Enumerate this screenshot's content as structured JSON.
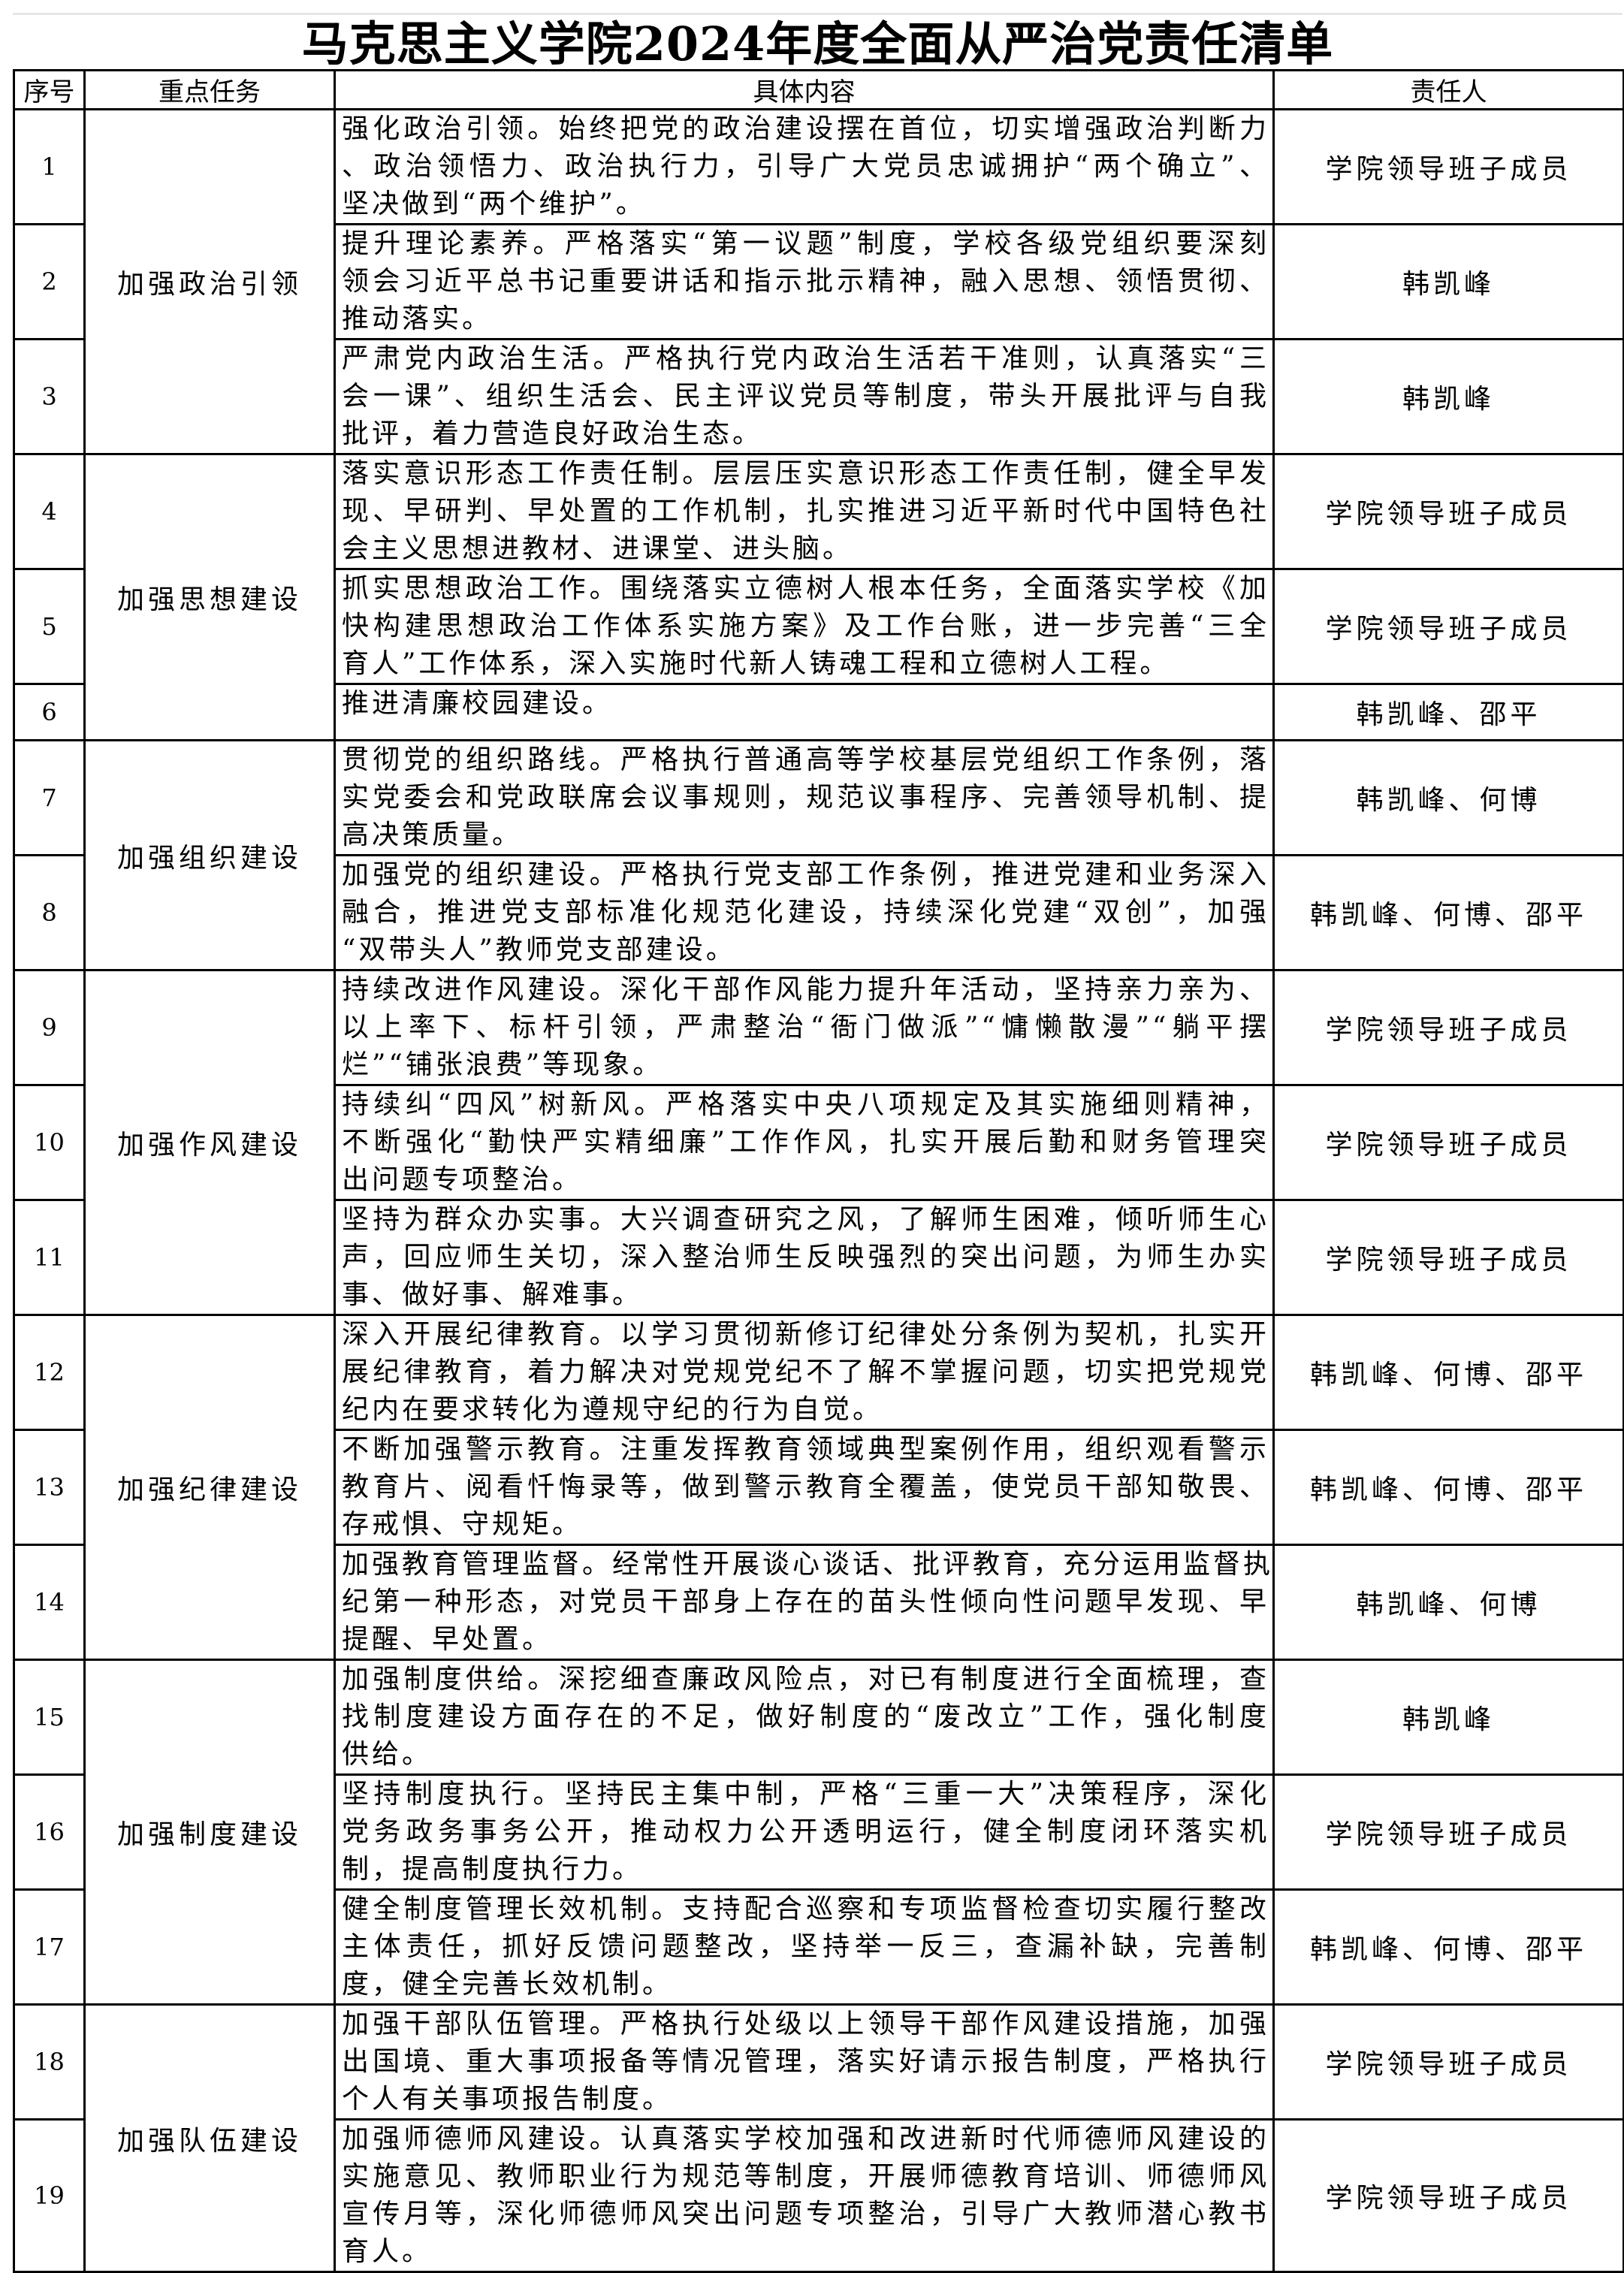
{
  "title": "马克思主义学院2024年度全面从严治党责任清单",
  "headers": [
    "序号",
    "重点任务",
    "具体内容",
    "责任人"
  ],
  "groups": [
    {
      "label": "加强政治引领",
      "rows": [
        {
          "no": "1",
          "lines": [
            "强化政治引领。始终把党的政治建设摆在首位，切实增强政治判断力",
            "、政治领悟力、政治执行力，引导广大党员忠诚拥护“两个确立”、",
            "坚决做到“两个维护”。"
          ],
          "person": "学院领导班子成员"
        },
        {
          "no": "2",
          "lines": [
            "提升理论素养。严格落实“第一议题”制度，学校各级党组织要深刻",
            "领会习近平总书记重要讲话和指示批示精神，融入思想、领悟贯彻、",
            "推动落实。"
          ],
          "person": "韩凯峰"
        },
        {
          "no": "3",
          "lines": [
            "严肃党内政治生活。严格执行党内政治生活若干准则，认真落实“三",
            "会一课”、组织生活会、民主评议党员等制度，带头开展批评与自我",
            "批评，着力营造良好政治生态。"
          ],
          "person": "韩凯峰"
        }
      ]
    },
    {
      "label": "加强思想建设",
      "rows": [
        {
          "no": "4",
          "lines": [
            "落实意识形态工作责任制。层层压实意识形态工作责任制，健全早发",
            "现、早研判、早处置的工作机制，扎实推进习近平新时代中国特色社",
            "会主义思想进教材、进课堂、进头脑。"
          ],
          "person": "学院领导班子成员"
        },
        {
          "no": "5",
          "lines": [
            "抓实思想政治工作。围绕落实立德树人根本任务，全面落实学校《加",
            "快构建思想政治工作体系实施方案》及工作台账，进一步完善“三全",
            "育人”工作体系，深入实施时代新人铸魂工程和立德树人工程。"
          ],
          "person": "学院领导班子成员"
        },
        {
          "no": "6",
          "lines": [
            "推进清廉校园建设。"
          ],
          "person": "韩凯峰、邵平"
        }
      ]
    },
    {
      "label": "加强组织建设",
      "rows": [
        {
          "no": "7",
          "lines": [
            "贯彻党的组织路线。严格执行普通高等学校基层党组织工作条例，落",
            "实党委会和党政联席会议事规则，规范议事程序、完善领导机制、提",
            "高决策质量。"
          ],
          "person": "韩凯峰、何博"
        },
        {
          "no": "8",
          "lines": [
            "加强党的组织建设。严格执行党支部工作条例，推进党建和业务深入",
            "融合，推进党支部标准化规范化建设，持续深化党建“双创”，加强",
            "“双带头人”教师党支部建设。"
          ],
          "person": "韩凯峰、何博、邵平"
        }
      ]
    },
    {
      "label": "加强作风建设",
      "rows": [
        {
          "no": "9",
          "lines": [
            "持续改进作风建设。深化干部作风能力提升年活动，坚持亲力亲为、",
            "以上率下、标杆引领，严肃整治“衙门做派”“慵懒散漫”“躺平摆",
            "烂”“铺张浪费”等现象。"
          ],
          "person": "学院领导班子成员"
        },
        {
          "no": "10",
          "lines": [
            "持续纠“四风”树新风。严格落实中央八项规定及其实施细则精神，",
            "不断强化“勤快严实精细廉”工作作风，扎实开展后勤和财务管理突",
            "出问题专项整治。"
          ],
          "person": "学院领导班子成员"
        },
        {
          "no": "11",
          "lines": [
            "坚持为群众办实事。大兴调查研究之风，了解师生困难，倾听师生心",
            "声，回应师生关切，深入整治师生反映强烈的突出问题，为师生办实",
            "事、做好事、解难事。"
          ],
          "person": "学院领导班子成员"
        }
      ]
    },
    {
      "label": "加强纪律建设",
      "rows": [
        {
          "no": "12",
          "lines": [
            "深入开展纪律教育。以学习贯彻新修订纪律处分条例为契机，扎实开",
            "展纪律教育，着力解决对党规党纪不了解不掌握问题，切实把党规党",
            "纪内在要求转化为遵规守纪的行为自觉。"
          ],
          "person": "韩凯峰、何博、邵平"
        },
        {
          "no": "13",
          "lines": [
            "不断加强警示教育。注重发挥教育领域典型案例作用，组织观看警示",
            "教育片、阅看忏悔录等，做到警示教育全覆盖，使党员干部知敬畏、",
            "存戒惧、守规矩。"
          ],
          "person": "韩凯峰、何博、邵平"
        },
        {
          "no": "14",
          "lines": [
            "加强教育管理监督。经常性开展谈心谈话、批评教育，充分运用监督执",
            "纪第一种形态，对党员干部身上存在的苗头性倾向性问题早发现、早",
            "提醒、早处置。"
          ],
          "person": "韩凯峰、何博"
        }
      ]
    },
    {
      "label": "加强制度建设",
      "rows": [
        {
          "no": "15",
          "lines": [
            "加强制度供给。深挖细查廉政风险点，对已有制度进行全面梳理，查",
            "找制度建设方面存在的不足，做好制度的“废改立”工作，强化制度",
            "供给。"
          ],
          "person": "韩凯峰"
        },
        {
          "no": "16",
          "lines": [
            "坚持制度执行。坚持民主集中制，严格“三重一大”决策程序，深化",
            "党务政务事务公开，推动权力公开透明运行，健全制度闭环落实机",
            "制，提高制度执行力。"
          ],
          "person": "学院领导班子成员"
        },
        {
          "no": "17",
          "lines": [
            "健全制度管理长效机制。支持配合巡察和专项监督检查切实履行整改",
            "主体责任，抓好反馈问题整改，坚持举一反三，查漏补缺，完善制",
            "度，健全完善长效机制。"
          ],
          "person": "韩凯峰、何博、邵平"
        }
      ]
    },
    {
      "label": "加强队伍建设",
      "rows": [
        {
          "no": "18",
          "lines": [
            "加强干部队伍管理。严格执行处级以上领导干部作风建设措施，加强",
            "出国境、重大事项报备等情况管理，落实好请示报告制度，严格执行",
            "个人有关事项报告制度。"
          ],
          "person": "学院领导班子成员"
        },
        {
          "no": "19",
          "lines": [
            "加强师德师风建设。认真落实学校加强和改进新时代师德师风建设的",
            "实施意见、教师职业行为规范等制度，开展师德教育培训、师德师风",
            "宣传月等，深化师德师风突出问题专项整治，引导广大教师潜心教书",
            "育人。"
          ],
          "person": "学院领导班子成员"
        }
      ]
    }
  ]
}
